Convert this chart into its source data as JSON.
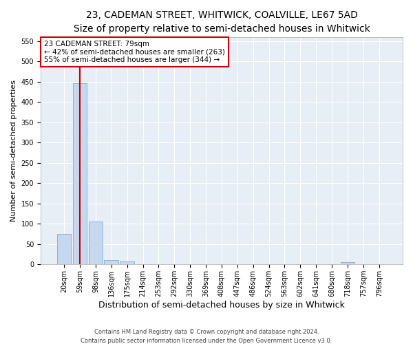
{
  "title": "23, CADEMAN STREET, WHITWICK, COALVILLE, LE67 5AD",
  "subtitle": "Size of property relative to semi-detached houses in Whitwick",
  "xlabel": "Distribution of semi-detached houses by size in Whitwick",
  "ylabel": "Number of semi-detached properties",
  "bin_labels": [
    "20sqm",
    "59sqm",
    "98sqm",
    "136sqm",
    "175sqm",
    "214sqm",
    "253sqm",
    "292sqm",
    "330sqm",
    "369sqm",
    "408sqm",
    "447sqm",
    "486sqm",
    "524sqm",
    "563sqm",
    "602sqm",
    "641sqm",
    "680sqm",
    "718sqm",
    "757sqm",
    "796sqm"
  ],
  "bar_heights": [
    75,
    447,
    105,
    10,
    7,
    0,
    0,
    0,
    0,
    0,
    0,
    0,
    0,
    0,
    0,
    0,
    0,
    0,
    5,
    0,
    0
  ],
  "bar_color": "#c5d8f0",
  "bar_edge_color": "#7aadd4",
  "vline_color": "#cc0000",
  "property_label": "23 CADEMAN STREET: 79sqm",
  "annotation_line1": "← 42% of semi-detached houses are smaller (263)",
  "annotation_line2": "55% of semi-detached houses are larger (344) →",
  "annotation_box_color": "#ffffff",
  "annotation_box_edge": "#cc0000",
  "ylim": [
    0,
    560
  ],
  "yticks": [
    0,
    50,
    100,
    150,
    200,
    250,
    300,
    350,
    400,
    450,
    500,
    550
  ],
  "background_color": "#e8eef5",
  "footer_line1": "Contains HM Land Registry data © Crown copyright and database right 2024.",
  "footer_line2": "Contains public sector information licensed under the Open Government Licence v3.0.",
  "title_fontsize": 10,
  "subtitle_fontsize": 9,
  "tick_fontsize": 7,
  "ylabel_fontsize": 8,
  "xlabel_fontsize": 9,
  "annotation_fontsize": 7.5,
  "footer_fontsize": 6
}
